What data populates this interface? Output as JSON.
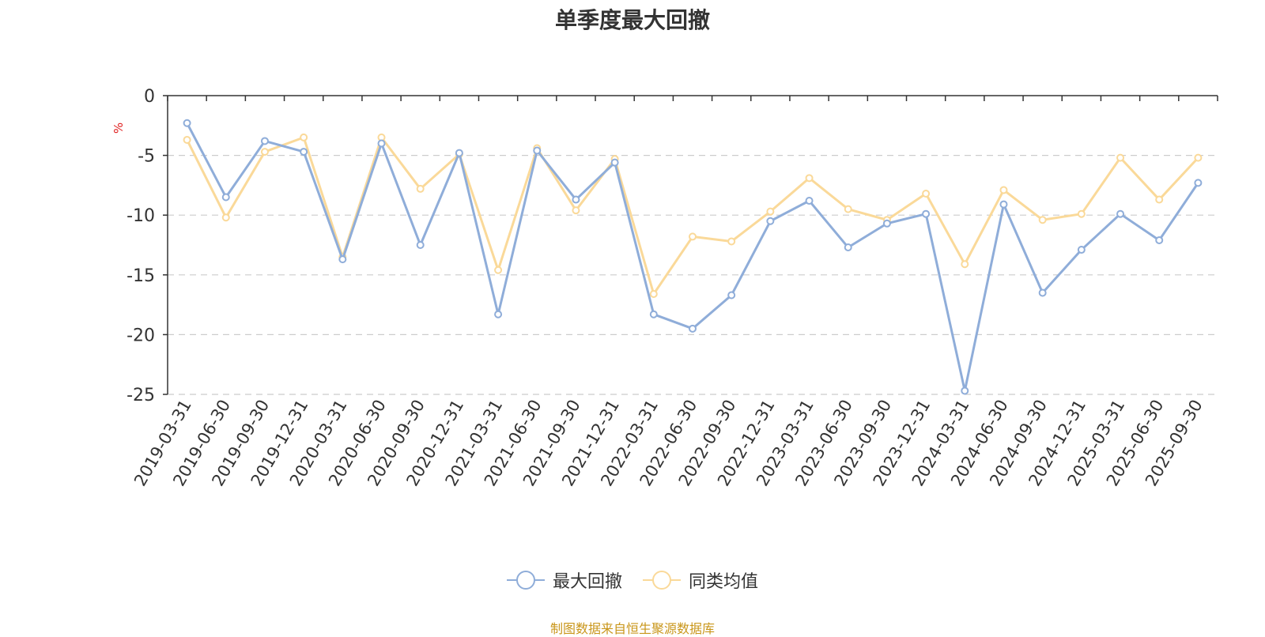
{
  "chart_data": {
    "type": "line",
    "title": "单季度最大回撤",
    "ylabel": "%",
    "xlabel": "",
    "ylim": [
      -25,
      0
    ],
    "yticks": [
      0,
      -5,
      -10,
      -15,
      -20,
      -25
    ],
    "grid": true,
    "legend_position": "bottom",
    "categories": [
      "2019-03-31",
      "2019-06-30",
      "2019-09-30",
      "2019-12-31",
      "2020-03-31",
      "2020-06-30",
      "2020-09-30",
      "2020-12-31",
      "2021-03-31",
      "2021-06-30",
      "2021-09-30",
      "2021-12-31",
      "2022-03-31",
      "2022-06-30",
      "2022-09-30",
      "2022-12-31",
      "2023-03-31",
      "2023-06-30",
      "2023-09-30",
      "2023-12-31",
      "2024-03-31",
      "2024-06-30",
      "2024-09-30",
      "2024-12-31",
      "2025-03-31",
      "2025-06-30",
      "2025-09-30"
    ],
    "series": [
      {
        "name": "最大回撤",
        "color": "#8fadd9",
        "values": [
          -2.3,
          -8.5,
          -3.8,
          -4.7,
          -13.7,
          -4.0,
          -12.5,
          -4.8,
          -18.3,
          -4.6,
          -8.7,
          -5.6,
          -18.3,
          -19.5,
          -16.7,
          -10.5,
          -8.8,
          -12.7,
          -10.7,
          -9.9,
          -24.7,
          -9.1,
          -16.5,
          -12.9,
          -9.9,
          -12.1,
          -7.3
        ]
      },
      {
        "name": "同类均值",
        "color": "#fad999",
        "values": [
          -3.7,
          -10.2,
          -4.7,
          -3.5,
          -13.5,
          -3.5,
          -7.8,
          -4.9,
          -14.6,
          -4.4,
          -9.6,
          -5.3,
          -16.6,
          -11.8,
          -12.2,
          -9.7,
          -6.9,
          -9.5,
          -10.4,
          -8.2,
          -14.1,
          -7.9,
          -10.4,
          -9.9,
          -5.2,
          -8.7,
          -5.2
        ]
      }
    ]
  },
  "footer": {
    "source": "制图数据来自恒生聚源数据库"
  },
  "colors": {
    "axis": "#333333",
    "grid": "#cccccc",
    "ylabel": "#e02020",
    "footer": "#c9961a"
  }
}
